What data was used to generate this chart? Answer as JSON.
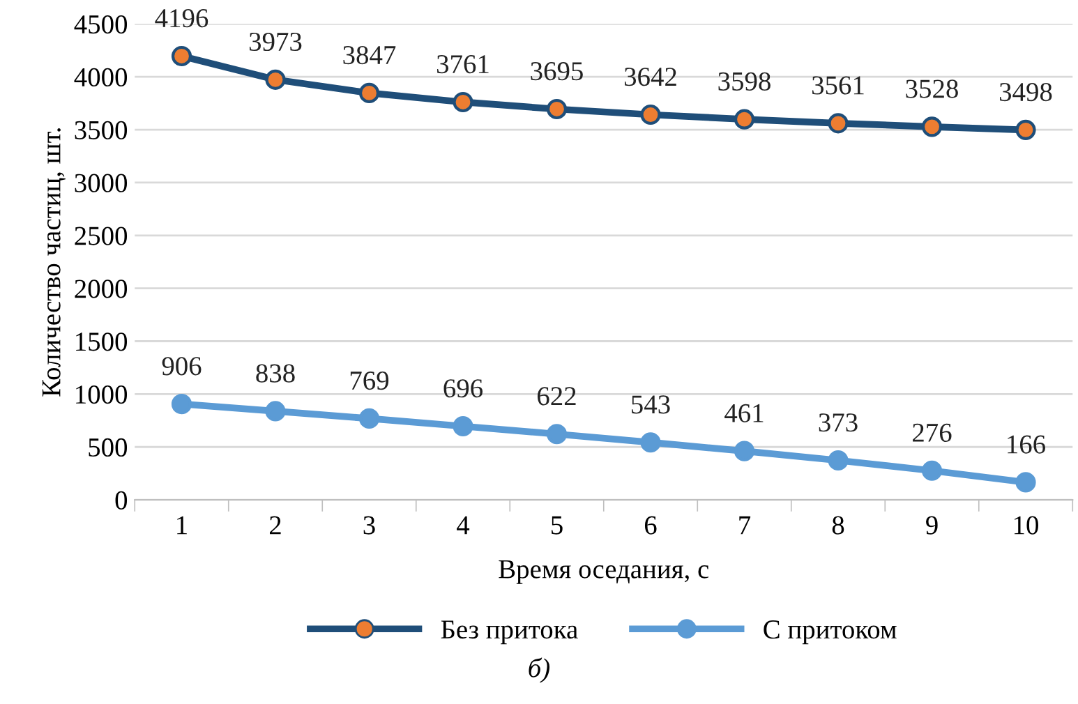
{
  "chart_data": {
    "type": "line",
    "xlabel": "Время оседания, с",
    "ylabel": "Количество частиц, шт.",
    "categories": [
      "1",
      "2",
      "3",
      "4",
      "5",
      "6",
      "7",
      "8",
      "9",
      "10"
    ],
    "series": [
      {
        "name": "Без притока",
        "color": "#1f4e79",
        "colors": [
          "#ed7d31",
          "#ed7d31",
          "#ed7d31",
          "#ed7d31",
          "#ed7d31",
          "#ed7d31",
          "#ed7d31",
          "#ed7d31",
          "#ed7d31",
          "#ed7d31"
        ],
        "values": [
          4196,
          3973,
          3847,
          3761,
          3695,
          3642,
          3598,
          3561,
          3528,
          3498
        ]
      },
      {
        "name": "С притоком",
        "color": "#5b9bd5",
        "values": [
          906,
          838,
          769,
          696,
          622,
          543,
          461,
          373,
          276,
          166
        ]
      }
    ],
    "ylim": [
      0,
      4500
    ],
    "yticks": [
      0,
      500,
      1000,
      1500,
      2000,
      2500,
      3000,
      3500,
      4000,
      4500
    ],
    "grid": "y",
    "legend": "bottom",
    "marker": "circle",
    "line_style": "solid",
    "data_labels": true,
    "annotations": [
      "б)"
    ]
  }
}
